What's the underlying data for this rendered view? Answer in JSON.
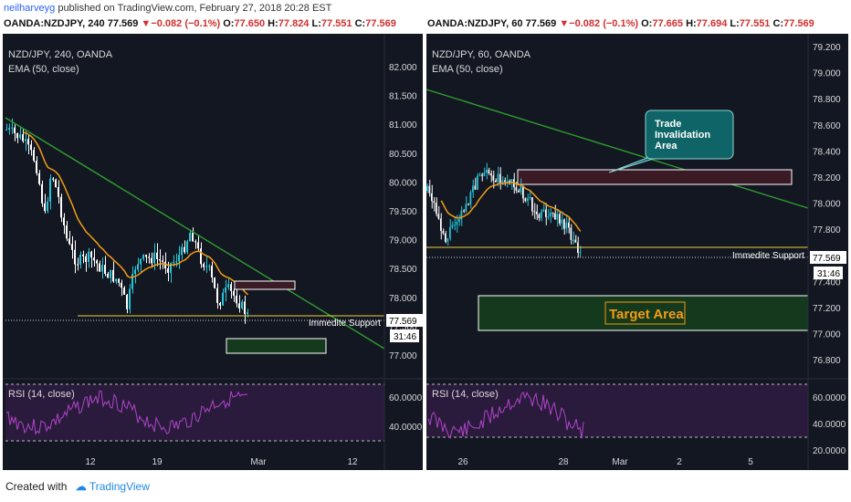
{
  "header": {
    "user": "neilharveyg",
    "text": " published on TradingView.com, February 27, 2018 20:28 EST"
  },
  "left_quote": {
    "symbol": "OANDA:NZDJPY, 240",
    "last": "77.569",
    "change": "−0.082 (−0.1%)",
    "o_label": "O:",
    "o": "77.650",
    "h_label": "H:",
    "h": "77.824",
    "l_label": "L:",
    "l": "77.551",
    "c_label": "C:",
    "c": "77.569"
  },
  "right_quote": {
    "symbol": "OANDA:NZDJPY, 60",
    "last": "77.569",
    "change": "−0.082 (−0.1%)",
    "o_label": "O:",
    "o": "77.665",
    "h_label": "H:",
    "h": "77.694",
    "l_label": "L:",
    "l": "77.551",
    "c_label": "C:",
    "c": "77.569"
  },
  "footer": {
    "created": "Created with",
    "brand": "TradingView"
  },
  "colors": {
    "bg": "#131722",
    "bull": "#26c6da",
    "bear": "#ffffff",
    "ema": "#f39c12",
    "trend": "#2e9e2e",
    "support": "#e8d23a",
    "rsi": "#b044c8",
    "rsi_band": "#2a1b3d",
    "zone_red": "#3a1a24",
    "zone_green": "#15391c",
    "target_text": "#f39c12"
  },
  "chart_data": [
    {
      "type": "candlestick",
      "title": "NZD/JPY, 240, OANDA",
      "indicator": "EMA (50, close)",
      "ylim": [
        76.6,
        82.4
      ],
      "y_ticks": [
        "82.000",
        "81.500",
        "81.000",
        "80.500",
        "80.000",
        "79.500",
        "79.000",
        "78.500",
        "78.000",
        "77.500",
        "77.000"
      ],
      "x_ticks": [
        "12",
        "19",
        "Mar",
        "12"
      ],
      "last_price": "77.569",
      "countdown": "31:46",
      "support": {
        "label": "Immedite Support",
        "value": 77.7
      },
      "zones": [
        {
          "name": "invalidation",
          "y_top": 78.25,
          "y_bottom": 78.05
        },
        {
          "name": "target",
          "y_top": 77.3,
          "y_bottom": 76.9
        }
      ],
      "rsi": {
        "label": "RSI (14, close)",
        "ticks": [
          "60.0000",
          "40.0000"
        ],
        "upper": 70,
        "lower": 30
      }
    },
    {
      "type": "candlestick",
      "title": "NZD/JPY, 60, OANDA",
      "indicator": "EMA (50, close)",
      "ylim": [
        76.6,
        79.3
      ],
      "y_ticks": [
        "79.200",
        "79.000",
        "78.800",
        "78.600",
        "78.400",
        "78.200",
        "78.000",
        "77.800",
        "77.600",
        "77.400",
        "77.200",
        "77.000",
        "76.800"
      ],
      "x_ticks": [
        "26",
        "28",
        "Mar",
        "2",
        "5"
      ],
      "last_price": "77.569",
      "countdown": "31:46",
      "support": {
        "label": "Immedite Support",
        "value": 77.65
      },
      "zones": [
        {
          "name": "invalidation",
          "y_top": 78.23,
          "y_bottom": 78.12
        },
        {
          "name": "target",
          "label": "Target Area",
          "y_top": 77.27,
          "y_bottom": 76.98
        }
      ],
      "callout": "Trade Invalidation Area",
      "rsi": {
        "label": "RSI (14, close)",
        "ticks": [
          "60.0000",
          "40.0000",
          "20.0000"
        ],
        "upper": 70,
        "lower": 30
      }
    }
  ]
}
